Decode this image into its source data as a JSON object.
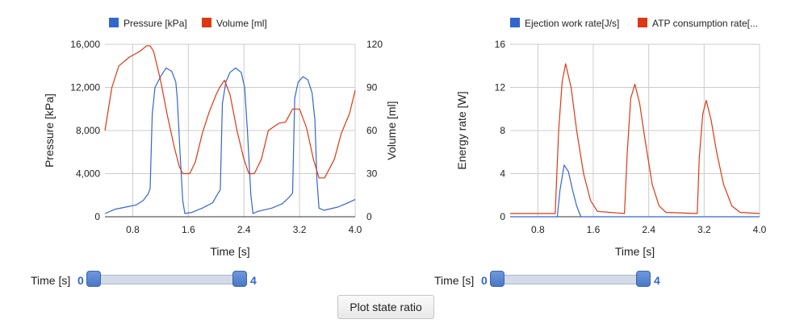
{
  "chart_data": [
    {
      "type": "line",
      "xlabel": "Time [s]",
      "ylabel_left": "Pressure [kPa]",
      "ylabel_right": "Volume [ml]",
      "xlim": [
        0.4,
        4.0
      ],
      "ylim_left": [
        0,
        16000
      ],
      "ylim_right": [
        0,
        120
      ],
      "x_ticks": [
        "0.8",
        "1.6",
        "2.4",
        "3.2",
        "4.0"
      ],
      "y_ticks_left": [
        "0",
        "4,000",
        "8,000",
        "12,000",
        "16,000"
      ],
      "y_ticks_right": [
        "0",
        "30",
        "60",
        "90",
        "120"
      ],
      "grid": true,
      "legend_position": "top",
      "series": [
        {
          "name": "Pressure [kPa]",
          "axis": "left",
          "color": "#3366cc",
          "points": [
            [
              0.4,
              300
            ],
            [
              0.55,
              700
            ],
            [
              0.7,
              900
            ],
            [
              0.85,
              1100
            ],
            [
              0.95,
              1500
            ],
            [
              1.02,
              2100
            ],
            [
              1.05,
              2600
            ],
            [
              1.08,
              9500
            ],
            [
              1.12,
              12000
            ],
            [
              1.2,
              13000
            ],
            [
              1.28,
              13800
            ],
            [
              1.36,
              13500
            ],
            [
              1.42,
              12500
            ],
            [
              1.44,
              11000
            ],
            [
              1.48,
              6000
            ],
            [
              1.52,
              1500
            ],
            [
              1.55,
              300
            ],
            [
              1.65,
              400
            ],
            [
              1.8,
              800
            ],
            [
              1.95,
              1300
            ],
            [
              2.02,
              2100
            ],
            [
              2.06,
              2500
            ],
            [
              2.09,
              10500
            ],
            [
              2.14,
              12500
            ],
            [
              2.2,
              13400
            ],
            [
              2.28,
              13800
            ],
            [
              2.36,
              13400
            ],
            [
              2.41,
              12000
            ],
            [
              2.45,
              8000
            ],
            [
              2.5,
              2000
            ],
            [
              2.53,
              300
            ],
            [
              2.6,
              500
            ],
            [
              2.8,
              800
            ],
            [
              2.95,
              1200
            ],
            [
              3.05,
              1800
            ],
            [
              3.1,
              2200
            ],
            [
              3.13,
              11000
            ],
            [
              3.18,
              12500
            ],
            [
              3.25,
              13000
            ],
            [
              3.32,
              12700
            ],
            [
              3.38,
              11500
            ],
            [
              3.42,
              9000
            ],
            [
              3.45,
              3500
            ],
            [
              3.48,
              800
            ],
            [
              3.55,
              600
            ],
            [
              3.75,
              900
            ],
            [
              3.9,
              1300
            ],
            [
              4.0,
              1600
            ]
          ]
        },
        {
          "name": "Volume [ml]",
          "axis": "right",
          "color": "#dc3912",
          "points": [
            [
              0.4,
              60
            ],
            [
              0.5,
              90
            ],
            [
              0.6,
              105
            ],
            [
              0.75,
              111
            ],
            [
              0.9,
              115
            ],
            [
              1.0,
              119
            ],
            [
              1.05,
              119
            ],
            [
              1.1,
              115
            ],
            [
              1.2,
              95
            ],
            [
              1.3,
              70
            ],
            [
              1.4,
              48
            ],
            [
              1.47,
              35
            ],
            [
              1.52,
              30
            ],
            [
              1.62,
              30
            ],
            [
              1.7,
              38
            ],
            [
              1.8,
              58
            ],
            [
              1.9,
              73
            ],
            [
              2.0,
              85
            ],
            [
              2.05,
              90
            ],
            [
              2.12,
              95
            ],
            [
              2.2,
              85
            ],
            [
              2.3,
              60
            ],
            [
              2.4,
              40
            ],
            [
              2.47,
              30
            ],
            [
              2.55,
              30
            ],
            [
              2.65,
              40
            ],
            [
              2.75,
              60
            ],
            [
              2.9,
              65
            ],
            [
              3.0,
              66
            ],
            [
              3.1,
              75
            ],
            [
              3.2,
              75
            ],
            [
              3.3,
              62
            ],
            [
              3.4,
              40
            ],
            [
              3.48,
              27
            ],
            [
              3.56,
              27
            ],
            [
              3.7,
              40
            ],
            [
              3.8,
              58
            ],
            [
              3.92,
              72
            ],
            [
              4.0,
              88
            ]
          ]
        }
      ]
    },
    {
      "type": "line",
      "xlabel": "Time [s]",
      "ylabel": "Energy rate [W]",
      "xlim": [
        0.4,
        4.0
      ],
      "ylim": [
        0,
        16
      ],
      "x_ticks": [
        "0.8",
        "1.6",
        "2.4",
        "3.2",
        "4.0"
      ],
      "y_ticks": [
        "0",
        "4",
        "8",
        "12",
        "16"
      ],
      "grid": true,
      "legend_position": "top",
      "series": [
        {
          "name": "Ejection work rate[J/s]",
          "color": "#3366cc",
          "points": [
            [
              0.4,
              0
            ],
            [
              1.08,
              0
            ],
            [
              1.12,
              2.5
            ],
            [
              1.18,
              4.8
            ],
            [
              1.24,
              4.2
            ],
            [
              1.3,
              2.5
            ],
            [
              1.36,
              1.0
            ],
            [
              1.42,
              0
            ],
            [
              4.0,
              0
            ]
          ]
        },
        {
          "name": "ATP consumption rate[...",
          "color": "#dc3912",
          "points": [
            [
              0.4,
              0.3
            ],
            [
              1.05,
              0.3
            ],
            [
              1.1,
              8
            ],
            [
              1.15,
              12.5
            ],
            [
              1.2,
              14.2
            ],
            [
              1.28,
              12
            ],
            [
              1.36,
              8
            ],
            [
              1.46,
              4
            ],
            [
              1.56,
              1.5
            ],
            [
              1.66,
              0.5
            ],
            [
              2.05,
              0.3
            ],
            [
              2.09,
              6
            ],
            [
              2.14,
              11
            ],
            [
              2.2,
              12.3
            ],
            [
              2.27,
              10.5
            ],
            [
              2.35,
              7
            ],
            [
              2.45,
              3
            ],
            [
              2.55,
              1
            ],
            [
              2.65,
              0.4
            ],
            [
              3.1,
              0.3
            ],
            [
              3.13,
              5.5
            ],
            [
              3.18,
              9.5
            ],
            [
              3.23,
              10.8
            ],
            [
              3.3,
              9
            ],
            [
              3.38,
              6
            ],
            [
              3.48,
              3
            ],
            [
              3.6,
              1
            ],
            [
              3.72,
              0.4
            ],
            [
              4.0,
              0.3
            ]
          ]
        }
      ]
    }
  ],
  "sliders": [
    {
      "label": "Time [s]",
      "min_label": "0",
      "max_label": "4",
      "range": [
        0,
        4
      ],
      "value": [
        0,
        4
      ]
    },
    {
      "label": "Time [s]",
      "min_label": "0",
      "max_label": "4",
      "range": [
        0,
        4
      ],
      "value": [
        0,
        4
      ]
    }
  ],
  "button": {
    "label": "Plot state ratio"
  }
}
